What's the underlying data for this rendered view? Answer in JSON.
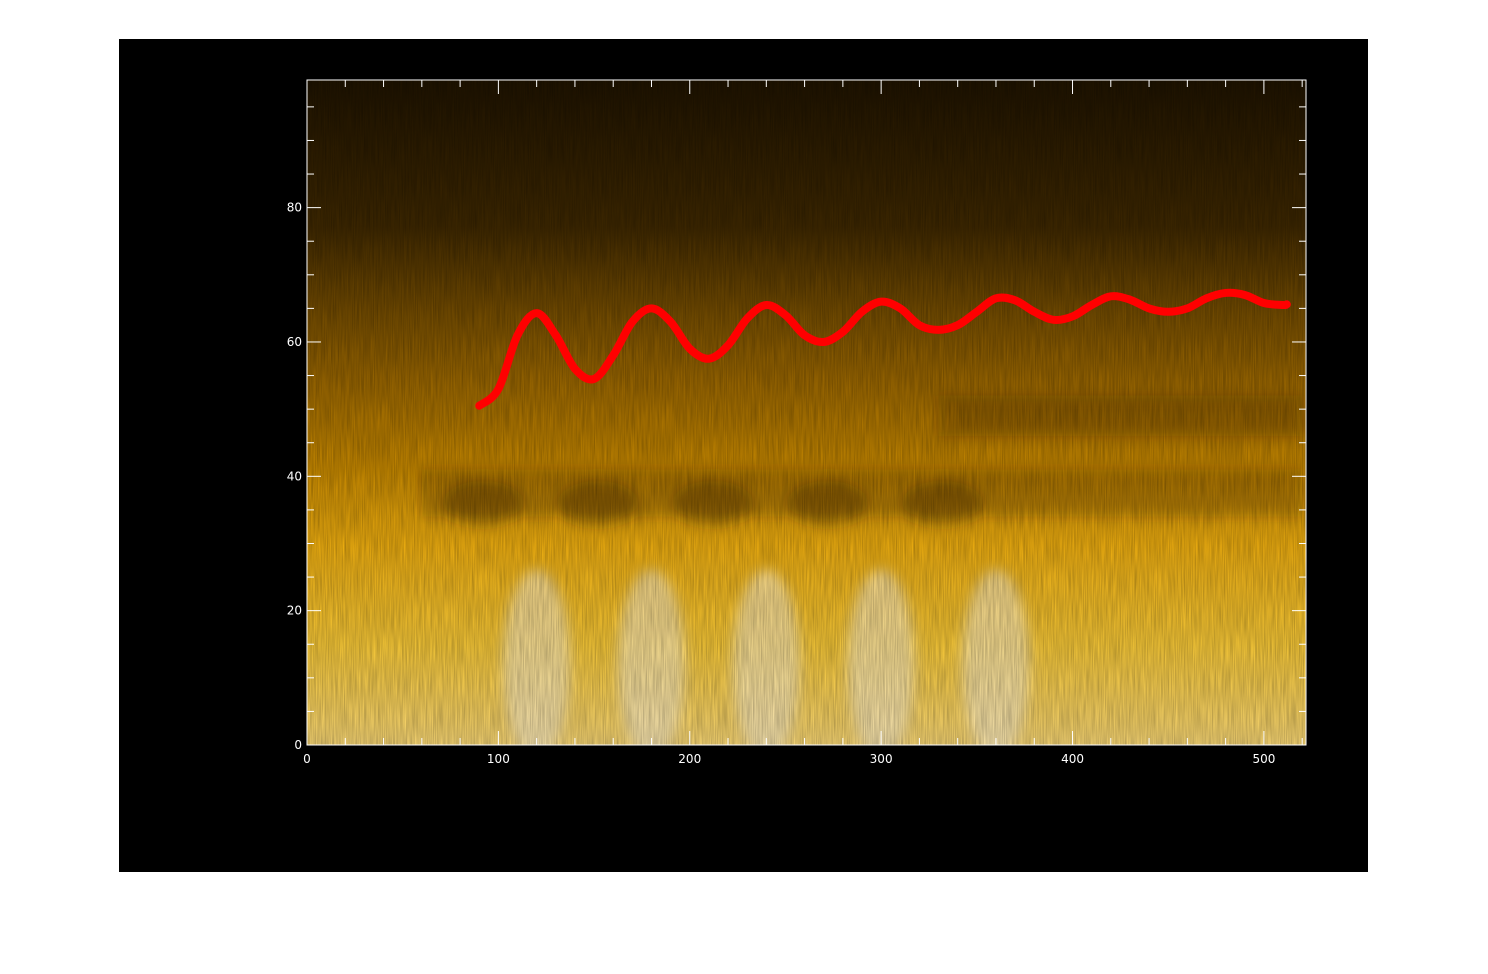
{
  "chart_data": {
    "type": "heatmap",
    "title": "",
    "xlabel": "",
    "ylabel": "",
    "xlim": [
      0,
      522
    ],
    "ylim": [
      0,
      99
    ],
    "x_ticks": [
      0,
      100,
      200,
      300,
      400,
      500
    ],
    "y_ticks": [
      0,
      20,
      40,
      60,
      80
    ],
    "x_tick_labels": [
      "0",
      "100",
      "200",
      "300",
      "400",
      "500"
    ],
    "y_tick_labels": [
      "0",
      "20",
      "40",
      "60",
      "80"
    ],
    "colormap": [
      "#1a1000",
      "#5a3a00",
      "#a66e00",
      "#f2a900",
      "#ffcf3a",
      "#fff3d6"
    ],
    "heatmap_description_features": {
      "oscillation_period": 60,
      "bright_peaks_x": [
        120,
        180,
        240,
        300,
        360
      ],
      "base_bright_level_y": [
        0,
        35
      ]
    },
    "series": [
      {
        "type": "line",
        "color": "#ff0000",
        "x": [
          90,
          100,
          110,
          120,
          130,
          140,
          150,
          160,
          170,
          180,
          190,
          200,
          210,
          220,
          230,
          240,
          250,
          260,
          270,
          280,
          290,
          300,
          310,
          320,
          330,
          340,
          350,
          360,
          370,
          380,
          390,
          400,
          410,
          420,
          430,
          440,
          450,
          460,
          470,
          480,
          490,
          500,
          510,
          512
        ],
        "y": [
          50.5,
          53,
          61,
          64.3,
          61,
          56,
          54.5,
          58,
          63,
          65,
          63,
          59,
          57.5,
          59.5,
          63.5,
          65.5,
          64,
          61,
          60,
          61.5,
          64.5,
          66,
          65,
          62.5,
          61.8,
          62.5,
          64.5,
          66.5,
          66.2,
          64.5,
          63.3,
          63.8,
          65.5,
          66.8,
          66.3,
          65,
          64.5,
          65,
          66.5,
          67.3,
          67,
          65.8,
          65.5,
          65.6
        ]
      }
    ]
  }
}
